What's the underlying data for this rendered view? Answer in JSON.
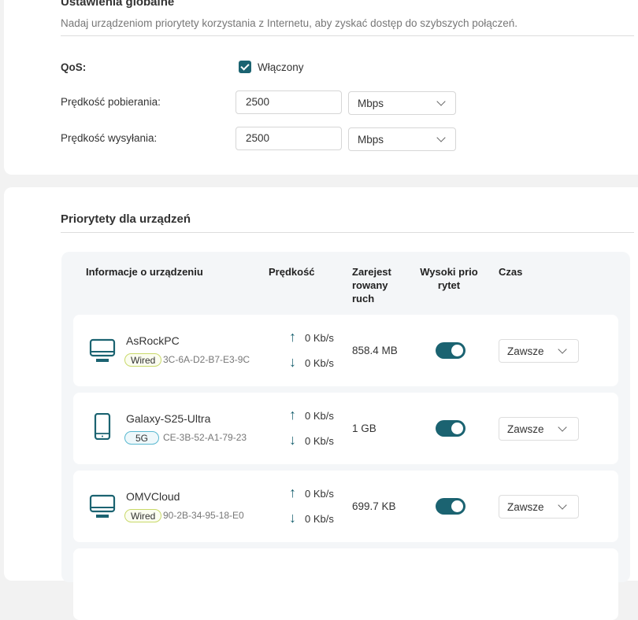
{
  "global": {
    "title": "Ustawienia globalne",
    "description": "Nadaj urządzeniom priorytety korzystania z Internetu, aby zyskać dostęp do szybszych połączeń.",
    "qos_label": "QoS:",
    "qos_checkbox_label": "Włączony",
    "qos_enabled": true,
    "download_label": "Prędkość pobierania:",
    "download_value": "2500",
    "download_unit": "Mbps",
    "upload_label": "Prędkość wysyłania:",
    "upload_value": "2500",
    "upload_unit": "Mbps"
  },
  "devices_section": {
    "title": "Priorytety dla urządzeń",
    "headers": {
      "info": "Informacje o urządzeniu",
      "speed": "Prędkość",
      "traffic": "Zarejest rowany ruch",
      "priority": "Wysoki prio rytet",
      "time": "Czas"
    },
    "rows": [
      {
        "name": "AsRockPC",
        "type": "desktop",
        "badge": "Wired",
        "mac": "3C-6A-D2-B7-E3-9C",
        "up": "0 Kb/s",
        "down": "0 Kb/s",
        "traffic": "858.4 MB",
        "high_priority": true,
        "time": "Zawsze"
      },
      {
        "name": "Galaxy-S25-Ultra",
        "type": "phone",
        "badge": "5G",
        "mac": "CE-3B-52-A1-79-23",
        "up": "0 Kb/s",
        "down": "0 Kb/s",
        "traffic": "1 GB",
        "high_priority": true,
        "time": "Zawsze"
      },
      {
        "name": "OMVCloud",
        "type": "desktop",
        "badge": "Wired",
        "mac": "90-2B-34-95-18-E0",
        "up": "0 Kb/s",
        "down": "0 Kb/s",
        "traffic": "699.7 KB",
        "high_priority": true,
        "time": "Zawsze"
      }
    ]
  },
  "colors": {
    "accent": "#1b6371",
    "wired_badge": "#c9d96a",
    "wifi_badge": "#58b8d0"
  }
}
